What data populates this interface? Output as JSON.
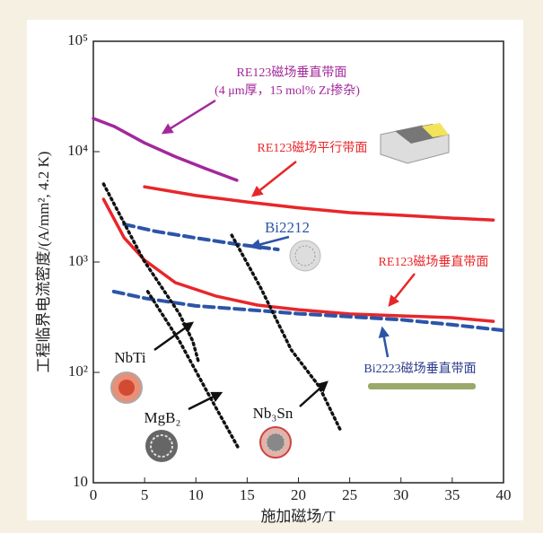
{
  "chart_data": {
    "type": "line",
    "x_label": "施加磁场/T",
    "y_label": "工程临界电流密度/(A/mm², 4.2 K)",
    "xlim": [
      0,
      40
    ],
    "xticks": [
      0,
      5,
      10,
      15,
      20,
      25,
      30,
      35,
      40
    ],
    "ylim": [
      10,
      100000
    ],
    "log_y": true,
    "yticks": [
      10,
      {
        "value": 100,
        "label": "10²"
      },
      {
        "value": 1000,
        "label": "10³"
      },
      {
        "value": 10000,
        "label": "10⁴"
      },
      {
        "value": 100000,
        "label": "10⁵"
      }
    ],
    "series": [
      {
        "name": "RE123磁场垂直带面",
        "annotation": "(4 μm厚，15 mol% Zr掺杂)",
        "color": "#a3289b",
        "dash": "solid",
        "x": [
          0,
          2,
          5,
          8,
          11,
          14
        ],
        "values": [
          20000,
          17000,
          12000,
          9000,
          7000,
          5500
        ]
      },
      {
        "name": "RE123磁场平行带面",
        "color": "#e8262a",
        "dash": "solid",
        "x": [
          5,
          10,
          15,
          20,
          25,
          30,
          35,
          39
        ],
        "values": [
          4800,
          4000,
          3500,
          3100,
          2800,
          2650,
          2500,
          2400
        ]
      },
      {
        "name": "Bi2212",
        "color": "#2c55a8",
        "dash": "dashed",
        "x": [
          3,
          6,
          10,
          14,
          18
        ],
        "values": [
          2200,
          1900,
          1650,
          1450,
          1300
        ]
      },
      {
        "name": "RE123磁场垂直带面",
        "color": "#e8262a",
        "dash": "solid",
        "x": [
          1,
          3,
          5,
          8,
          12,
          16,
          20,
          25,
          30,
          35,
          39
        ],
        "values": [
          3700,
          1660,
          1040,
          650,
          490,
          407,
          370,
          338,
          325,
          313,
          290
        ]
      },
      {
        "name": "Bi2223磁场垂直带面",
        "color": "#2c55a8",
        "dash": "dashed",
        "x": [
          2,
          5,
          10,
          15,
          20,
          25,
          30,
          35,
          40
        ],
        "values": [
          540,
          470,
          400,
          370,
          340,
          320,
          300,
          270,
          240
        ]
      },
      {
        "name": "NbTi",
        "color": "#111111",
        "dash": "dotted",
        "x": [
          1,
          4.9,
          8.4,
          9.7,
          10.3
        ],
        "values": [
          5100,
          1040,
          338,
          192,
          120
        ]
      },
      {
        "name": "MgB₂",
        "color": "#111111",
        "dash": "dotted",
        "x": [
          5.3,
          8.4,
          11.5,
          14.1
        ],
        "values": [
          540,
          192,
          57,
          21
        ]
      },
      {
        "name": "Nb₃Sn",
        "color": "#111111",
        "dash": "dotted",
        "x": [
          13.5,
          16.3,
          19.3,
          22,
          24.1
        ],
        "values": [
          1750,
          590,
          160,
          75,
          30
        ]
      }
    ]
  }
}
